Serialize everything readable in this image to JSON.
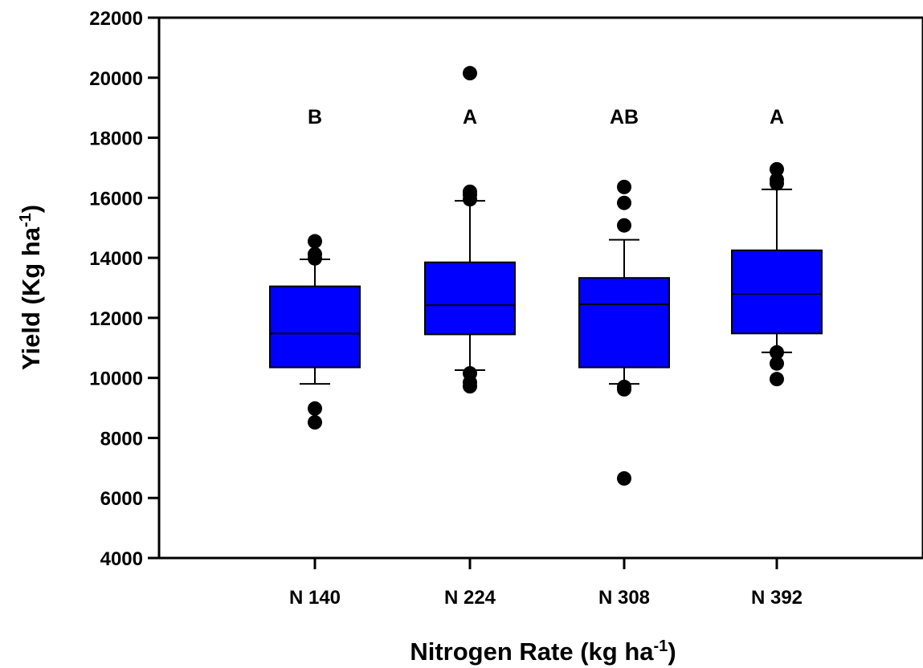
{
  "chart_data": {
    "type": "box",
    "title": "",
    "xlabel": {
      "text": "Nitrogen Rate (kg ha",
      "sup": "-1",
      "close": ")"
    },
    "ylabel": {
      "text": "Yield (Kg ha",
      "sup": "-1",
      "close": ")"
    },
    "ylim": [
      4000,
      22000
    ],
    "yticks": [
      4000,
      6000,
      8000,
      10000,
      12000,
      14000,
      16000,
      18000,
      20000,
      22000
    ],
    "categories": [
      "N 140",
      "N 224",
      "N 308",
      "N 392"
    ],
    "boxes": [
      {
        "category": "N 140",
        "q1": 10350,
        "median": 11480,
        "q3": 13050,
        "whisker_low": 9800,
        "whisker_high": 13950,
        "outliers": [
          8520,
          8980,
          13980,
          14120,
          14550
        ],
        "letter": "B"
      },
      {
        "category": "N 224",
        "q1": 11450,
        "median": 12420,
        "q3": 13850,
        "whisker_low": 10260,
        "whisker_high": 15900,
        "outliers": [
          9720,
          9850,
          10150,
          15950,
          16100,
          16200,
          20150
        ],
        "letter": "A"
      },
      {
        "category": "N 308",
        "q1": 10350,
        "median": 12450,
        "q3": 13330,
        "whisker_low": 9800,
        "whisker_high": 14600,
        "outliers": [
          6650,
          9620,
          9700,
          15080,
          15830,
          16360
        ],
        "letter": "AB"
      },
      {
        "category": "N 392",
        "q1": 11480,
        "median": 12800,
        "q3": 14250,
        "whisker_low": 10850,
        "whisker_high": 16280,
        "outliers": [
          9960,
          10480,
          10850,
          16480,
          16600,
          16950
        ],
        "letter": "A"
      }
    ],
    "box_color": "#0000FF",
    "grid": false,
    "legend": "none"
  }
}
